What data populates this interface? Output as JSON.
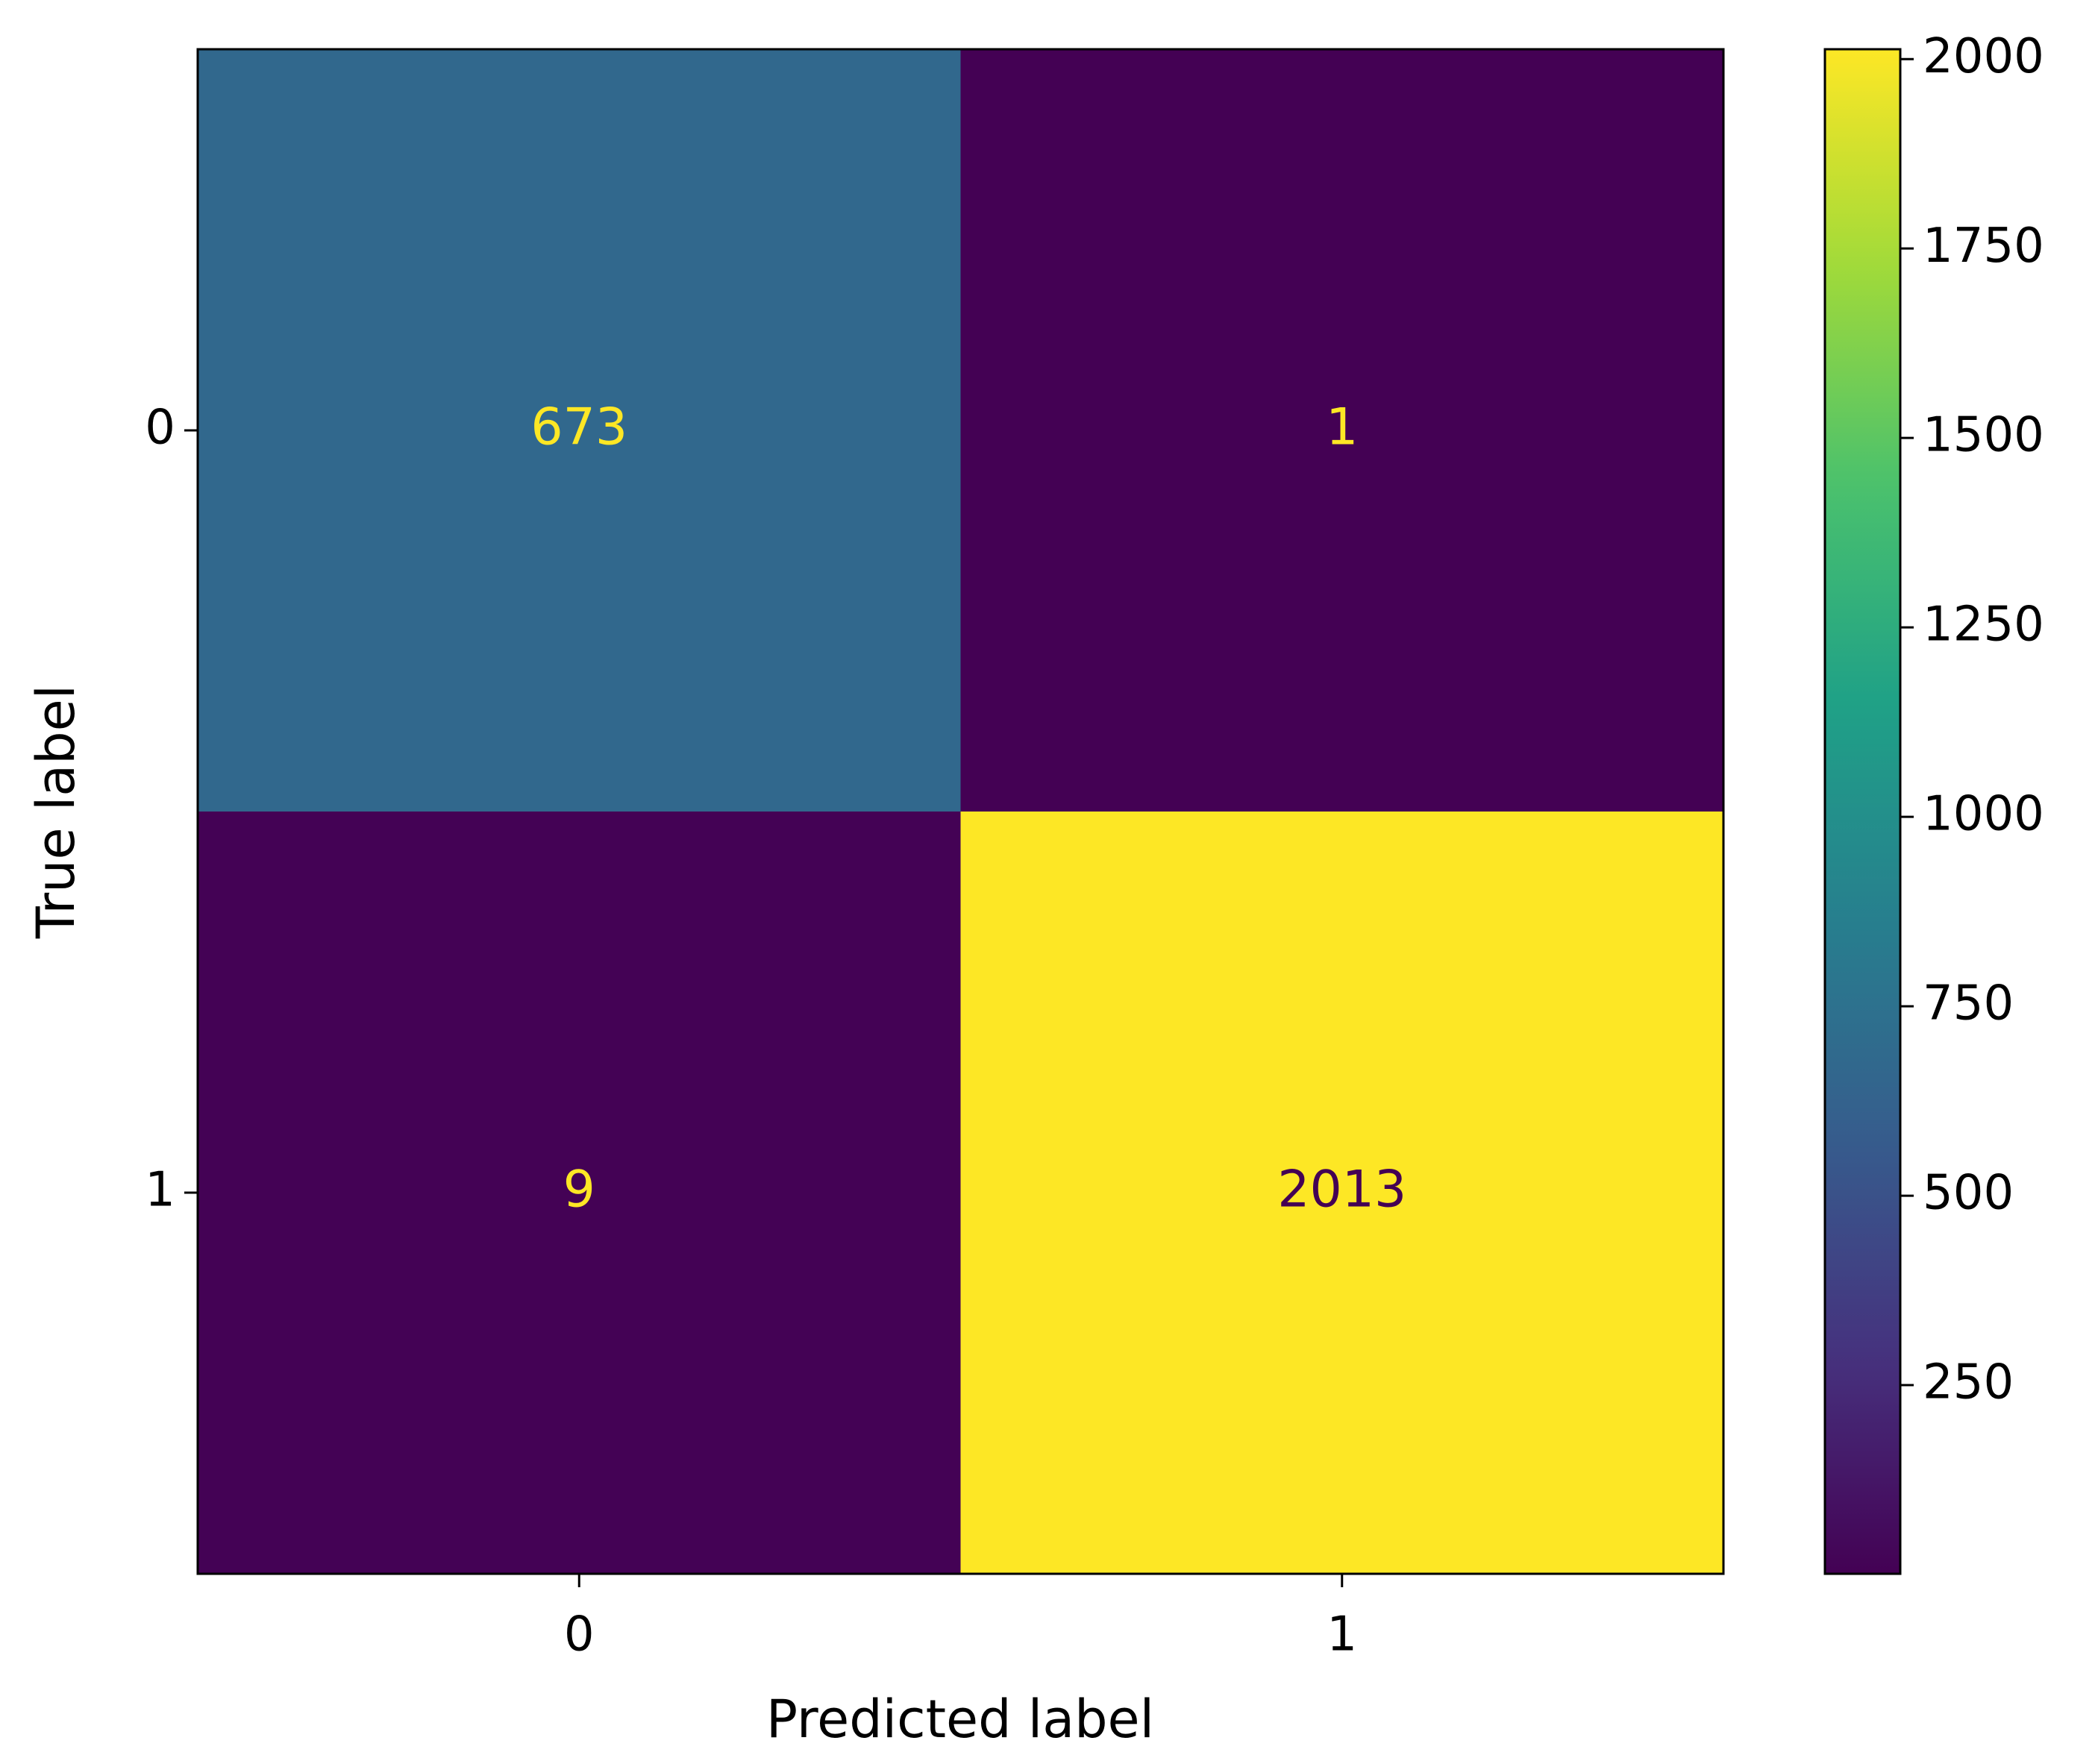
{
  "chart_data": {
    "type": "heatmap",
    "xlabel": "Predicted label",
    "ylabel": "True label",
    "x_categories": [
      "0",
      "1"
    ],
    "y_categories": [
      "0",
      "1"
    ],
    "values": [
      [
        673,
        1
      ],
      [
        9,
        2013
      ]
    ],
    "colormap": "viridis",
    "zlim": [
      1,
      2013
    ],
    "zticks": [
      250,
      500,
      750,
      1000,
      1250,
      1500,
      1750,
      2000
    ]
  }
}
